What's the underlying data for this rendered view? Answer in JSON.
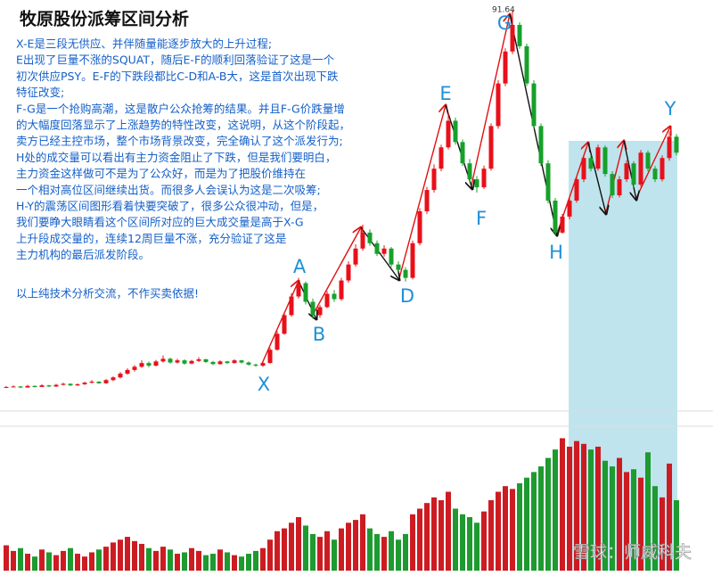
{
  "chart_data": {
    "type": "candlestick",
    "title": "牧原股份派筹区间分析",
    "text_lines": [
      "X-E是三段无供应、并伴随量能逐步放大的上升过程;",
      "E出现了巨量不涨的SQUAT，随后E-F的顺利回落验证了这是一个",
      "初次供应PSY。E-F的下跌段都比C-D和A-B大，这是首次出现下跌",
      "特征改变;",
      "F-G是一个抢购高潮，这是散户公众抢筹的结果。并且F-G价跌量增",
      "的大幅度回落显示了上涨趋势的特性改变，这说明，从这个阶段起，",
      "卖方已经主控市场，整个市场背景改变，完全确认了这个派发行为;",
      "H处的成交量可以看出有主力资金阻止了下跌，但是我们要明白，",
      "主力资金这样做可不是为了公众好，而是为了把股价维持在",
      "一个相对高位区间继续出货。而很多人会误认为这是二次吸筹;",
      "H-Y的震荡区间图形看着快要突破了，很多公众很冲动，但是，",
      "我们要睁大眼睛看这个区间所对应的巨大成交量是高于X-G",
      "上升段成交量的，连续12周巨量不涨，充分验证了这是",
      "主力机构的最后派发阶段。"
    ],
    "footnote": "以上纯技术分析交流，不作买卖依据!",
    "annotations": [
      "X",
      "A",
      "B",
      "D",
      "E",
      "F",
      "G",
      "H",
      "Y"
    ],
    "watermark": "雪球：师威科夫",
    "up_color": "#e8101a",
    "down_color": "#17a02a",
    "ylim": [
      20,
      92
    ],
    "volume_ylim": [
      0,
      100
    ],
    "candles": [
      [
        20.9,
        21.2,
        20.8,
        21.0
      ],
      [
        21.0,
        21.3,
        20.9,
        21.1
      ],
      [
        21.1,
        21.2,
        20.8,
        20.9
      ],
      [
        20.9,
        21.4,
        20.9,
        21.2
      ],
      [
        21.2,
        21.3,
        20.9,
        21.0
      ],
      [
        21.0,
        21.5,
        21.0,
        21.3
      ],
      [
        21.3,
        21.4,
        21.0,
        21.1
      ],
      [
        21.1,
        21.6,
        21.0,
        21.4
      ],
      [
        21.4,
        21.8,
        21.3,
        21.6
      ],
      [
        21.6,
        21.7,
        21.2,
        21.3
      ],
      [
        21.3,
        21.7,
        21.2,
        21.5
      ],
      [
        21.5,
        22.0,
        21.4,
        21.8
      ],
      [
        21.8,
        22.3,
        21.7,
        22.0
      ],
      [
        22.0,
        22.1,
        21.6,
        21.7
      ],
      [
        21.7,
        22.5,
        21.6,
        22.3
      ],
      [
        22.3,
        23.0,
        22.1,
        22.8
      ],
      [
        22.8,
        23.8,
        22.6,
        23.5
      ],
      [
        23.5,
        24.5,
        23.3,
        24.2
      ],
      [
        24.2,
        25.1,
        23.9,
        24.8
      ],
      [
        24.8,
        26.0,
        24.6,
        25.5
      ],
      [
        25.5,
        25.8,
        24.7,
        25.0
      ],
      [
        25.0,
        26.1,
        24.9,
        25.8
      ],
      [
        25.8,
        26.9,
        25.6,
        26.3
      ],
      [
        26.3,
        26.5,
        25.4,
        25.6
      ],
      [
        25.6,
        26.3,
        25.4,
        26.0
      ],
      [
        26.0,
        26.2,
        25.2,
        25.4
      ],
      [
        25.4,
        26.1,
        25.3,
        25.9
      ],
      [
        25.9,
        26.6,
        25.7,
        26.2
      ],
      [
        26.2,
        26.3,
        25.5,
        25.7
      ],
      [
        25.7,
        25.9,
        25.1,
        25.3
      ],
      [
        25.3,
        26.0,
        25.2,
        25.8
      ],
      [
        25.8,
        25.9,
        25.3,
        25.5
      ],
      [
        25.5,
        26.2,
        25.4,
        26.0
      ],
      [
        26.0,
        26.1,
        25.4,
        25.6
      ],
      [
        25.6,
        25.8,
        25.0,
        25.2
      ],
      [
        25.2,
        25.4,
        24.8,
        25.0
      ],
      [
        25.0,
        25.9,
        24.8,
        25.5
      ],
      [
        25.5,
        28.4,
        25.4,
        28.0
      ],
      [
        28.0,
        31.5,
        27.8,
        31.0
      ],
      [
        31.0,
        35.0,
        30.8,
        34.5
      ],
      [
        34.5,
        38.6,
        34.2,
        38.0
      ],
      [
        38.0,
        41.5,
        37.6,
        40.5
      ],
      [
        40.5,
        40.8,
        36.5,
        37.0
      ],
      [
        37.0,
        37.6,
        33.8,
        34.5
      ],
      [
        34.5,
        36.4,
        34.0,
        36.0
      ],
      [
        36.0,
        39.0,
        35.8,
        38.5
      ],
      [
        38.5,
        39.2,
        37.0,
        37.5
      ],
      [
        37.5,
        41.5,
        37.2,
        41.0
      ],
      [
        41.0,
        44.6,
        40.6,
        44.0
      ],
      [
        44.0,
        47.8,
        43.6,
        47.0
      ],
      [
        47.0,
        51.5,
        46.6,
        50.0
      ],
      [
        50.0,
        50.6,
        47.5,
        48.0
      ],
      [
        48.0,
        48.5,
        45.6,
        46.0
      ],
      [
        46.0,
        47.6,
        45.5,
        47.0
      ],
      [
        47.0,
        47.3,
        43.5,
        44.0
      ],
      [
        44.0,
        44.6,
        42.5,
        43.0
      ],
      [
        43.0,
        43.5,
        40.8,
        41.5
      ],
      [
        41.5,
        48.5,
        41.2,
        48.0
      ],
      [
        48.0,
        54.6,
        47.6,
        54.0
      ],
      [
        54.0,
        58.6,
        53.5,
        58.0
      ],
      [
        58.0,
        62.8,
        57.5,
        62.0
      ],
      [
        62.0,
        66.5,
        61.5,
        66.0
      ],
      [
        66.0,
        72.5,
        65.6,
        71.0
      ],
      [
        71.0,
        71.6,
        66.5,
        67.0
      ],
      [
        67.0,
        67.5,
        62.5,
        63.0
      ],
      [
        63.0,
        63.8,
        59.5,
        60.0
      ],
      [
        60.0,
        60.6,
        57.5,
        58.5
      ],
      [
        58.5,
        62.6,
        58.2,
        62.0
      ],
      [
        62.0,
        70.5,
        61.6,
        70.0
      ],
      [
        70.0,
        78.6,
        69.5,
        78.0
      ],
      [
        78.0,
        84.6,
        77.5,
        84.0
      ],
      [
        84.0,
        91.64,
        83.5,
        89.0
      ],
      [
        89.0,
        89.5,
        84.5,
        85.0
      ],
      [
        85.0,
        85.5,
        77.5,
        78.0
      ],
      [
        78.0,
        78.6,
        69.5,
        70.0
      ],
      [
        70.0,
        70.5,
        62.5,
        63.0
      ],
      [
        63.0,
        63.6,
        55.5,
        56.0
      ],
      [
        56.0,
        56.5,
        49.5,
        50.0
      ],
      [
        50.0,
        53.5,
        49.8,
        53.0
      ],
      [
        53.0,
        56.6,
        52.5,
        56.0
      ],
      [
        56.0,
        60.5,
        55.6,
        60.0
      ],
      [
        60.0,
        64.6,
        59.5,
        64.0
      ],
      [
        64.0,
        64.5,
        61.5,
        62.0
      ],
      [
        62.0,
        66.5,
        61.6,
        66.0
      ],
      [
        66.0,
        66.4,
        60.5,
        61.0
      ],
      [
        61.0,
        61.5,
        56.5,
        57.0
      ],
      [
        57.0,
        60.6,
        56.6,
        60.0
      ],
      [
        60.0,
        63.6,
        59.5,
        63.0
      ],
      [
        63.0,
        63.4,
        58.5,
        59.0
      ],
      [
        59.0,
        65.5,
        58.6,
        65.0
      ],
      [
        65.0,
        65.4,
        61.5,
        62.0
      ],
      [
        62.0,
        62.5,
        59.5,
        60.0
      ],
      [
        60.0,
        64.5,
        59.6,
        64.0
      ],
      [
        64.0,
        69.0,
        63.5,
        68.0
      ],
      [
        68.0,
        68.5,
        64.5,
        65.0
      ]
    ],
    "volume": [
      18,
      14,
      16,
      12,
      10,
      15,
      13,
      11,
      14,
      16,
      12,
      10,
      13,
      15,
      17,
      20,
      22,
      24,
      21,
      19,
      16,
      14,
      17,
      15,
      12,
      13,
      16,
      14,
      11,
      12,
      15,
      13,
      11,
      10,
      12,
      14,
      16,
      22,
      28,
      30,
      34,
      38,
      32,
      26,
      24,
      28,
      22,
      30,
      34,
      36,
      40,
      30,
      26,
      24,
      28,
      22,
      26,
      40,
      44,
      48,
      52,
      50,
      56,
      44,
      40,
      38,
      34,
      42,
      50,
      56,
      60,
      58,
      62,
      66,
      70,
      74,
      80,
      86,
      94,
      88,
      92,
      90,
      86,
      88,
      78,
      74,
      80,
      70,
      72,
      66,
      84,
      60,
      52,
      76,
      50
    ]
  }
}
